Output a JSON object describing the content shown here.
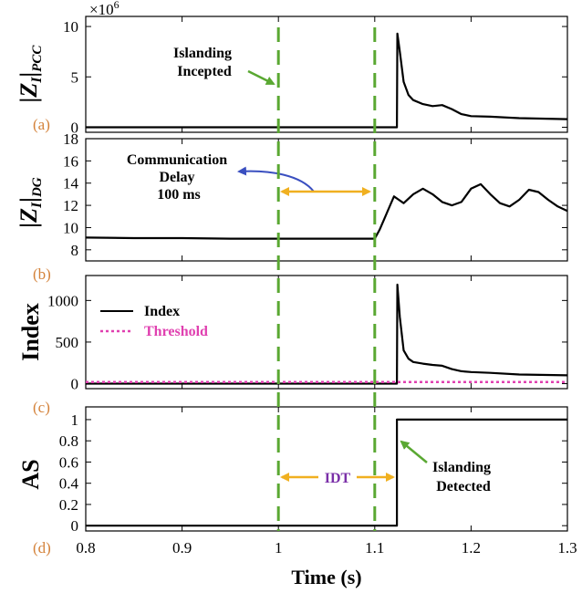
{
  "chart_data": {
    "type": "line",
    "xlabel": "Time (s)",
    "xlim": [
      0.8,
      1.3
    ],
    "xticks": [
      0.8,
      0.9,
      1.0,
      1.1,
      1.2,
      1.3
    ],
    "xtick_labels": [
      "0.8",
      "0.9",
      "1",
      "1.1",
      "1.2",
      "1.3"
    ],
    "markers": [
      {
        "x": 1.0,
        "style": "dashed",
        "color": "#5aa832"
      },
      {
        "x": 1.1,
        "style": "dashed",
        "color": "#5aa832"
      }
    ],
    "panels": [
      {
        "id": "a",
        "tag": "(a)",
        "ylabel": "|Z",
        "ylabel_sub": "I",
        "ylabel_pipe": "|",
        "ylabel_sub2": "PCC",
        "ylim": [
          -0.5,
          11
        ],
        "yticks": [
          0,
          5,
          10
        ],
        "ytick_labels": [
          "0",
          "5",
          "10"
        ],
        "exponent": "×10",
        "exponent_power": "6",
        "series": [
          {
            "name": "",
            "color": "#000000",
            "x": [
              0.8,
              1.123,
              1.1235,
              1.126,
              1.13,
              1.135,
              1.14,
              1.15,
              1.16,
              1.17,
              1.18,
              1.19,
              1.2,
              1.22,
              1.25,
              1.3
            ],
            "y": [
              0,
              0,
              9.3,
              7.5,
              4.5,
              3.2,
              2.7,
              2.3,
              2.1,
              2.2,
              1.8,
              1.3,
              1.1,
              1.05,
              0.9,
              0.8
            ]
          }
        ],
        "annotations": [
          {
            "lines": [
              "Islanding",
              "Incepted"
            ],
            "color": "#000000"
          }
        ]
      },
      {
        "id": "b",
        "tag": "(b)",
        "ylabel": "|Z",
        "ylabel_sub": "I",
        "ylabel_pipe": "|",
        "ylabel_sub2": "DG",
        "ylim": [
          7,
          18
        ],
        "yticks": [
          8,
          10,
          12,
          14,
          16,
          18
        ],
        "ytick_labels": [
          "8",
          "10",
          "12",
          "14",
          "16",
          "18"
        ],
        "series": [
          {
            "name": "",
            "color": "#000000",
            "x": [
              0.8,
              0.85,
              0.9,
              0.95,
              1.0,
              1.05,
              1.1,
              1.105,
              1.11,
              1.115,
              1.12,
              1.125,
              1.13,
              1.14,
              1.15,
              1.16,
              1.17,
              1.18,
              1.19,
              1.2,
              1.21,
              1.22,
              1.23,
              1.24,
              1.25,
              1.26,
              1.27,
              1.28,
              1.29,
              1.3
            ],
            "y": [
              9.1,
              9.05,
              9.05,
              9.0,
              9.0,
              9.0,
              9.0,
              9.8,
              10.8,
              11.8,
              12.8,
              12.5,
              12.2,
              13.0,
              13.5,
              13.0,
              12.3,
              12.0,
              12.3,
              13.5,
              13.9,
              13.0,
              12.2,
              11.9,
              12.5,
              13.4,
              13.2,
              12.5,
              11.9,
              11.5
            ]
          }
        ],
        "annotations": [
          {
            "lines": [
              "Communication",
              "Delay",
              "100 ms"
            ],
            "color": "#000000"
          }
        ]
      },
      {
        "id": "c",
        "tag": "(c)",
        "ylabel": "Index",
        "ylim": [
          -60,
          1300
        ],
        "yticks": [
          0,
          500,
          1000
        ],
        "ytick_labels": [
          "0",
          "500",
          "1000"
        ],
        "legend_position": "top-left",
        "series": [
          {
            "name": "Index",
            "color": "#000000",
            "dash": "solid",
            "x": [
              0.8,
              1.123,
              1.1235,
              1.126,
              1.13,
              1.135,
              1.14,
              1.15,
              1.16,
              1.17,
              1.18,
              1.19,
              1.2,
              1.22,
              1.25,
              1.3
            ],
            "y": [
              0,
              0,
              1190,
              800,
              400,
              300,
              260,
              240,
              225,
              215,
              175,
              150,
              140,
              130,
              110,
              100
            ]
          },
          {
            "name": "Threshold",
            "color": "#e040b0",
            "dash": "dotted",
            "x": [
              0.8,
              1.3
            ],
            "y": [
              20,
              20
            ]
          }
        ]
      },
      {
        "id": "d",
        "tag": "(d)",
        "ylabel": "AS",
        "ylim": [
          -0.05,
          1.12
        ],
        "yticks": [
          0,
          0.2,
          0.4,
          0.6,
          0.8,
          1
        ],
        "ytick_labels": [
          "0",
          "0.2",
          "0.4",
          "0.6",
          "0.8",
          "1"
        ],
        "series": [
          {
            "name": "",
            "color": "#000000",
            "x": [
              0.8,
              1.123,
              1.123,
              1.3
            ],
            "y": [
              0,
              0,
              1,
              1
            ]
          }
        ],
        "annotations": [
          {
            "lines": [
              "IDT"
            ],
            "color": "#7a2fa8"
          },
          {
            "lines": [
              "Islanding",
              "Detected"
            ],
            "color": "#000000"
          }
        ]
      }
    ]
  }
}
